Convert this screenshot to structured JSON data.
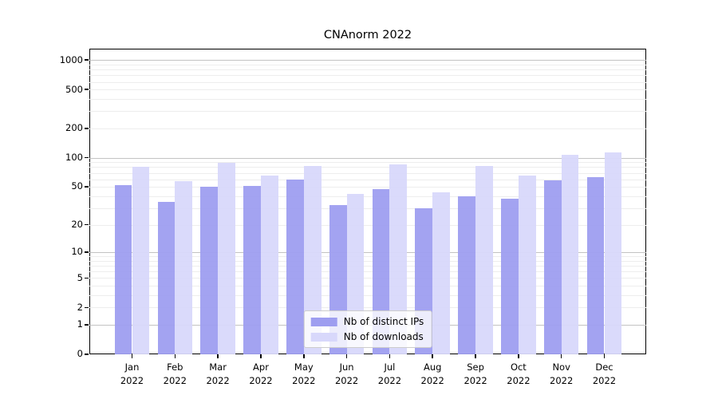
{
  "figure": {
    "title": "CNAnorm 2022"
  },
  "chart_data": {
    "type": "bar",
    "title": "CNAnorm 2022",
    "categories": [
      "Jan 2022",
      "Feb 2022",
      "Mar 2022",
      "Apr 2022",
      "May 2022",
      "Jun 2022",
      "Jul 2022",
      "Aug 2022",
      "Sep 2022",
      "Oct 2022",
      "Nov 2022",
      "Dec 2022"
    ],
    "series": [
      {
        "name": "Nb of distinct IPs",
        "color": "#9e9ef0",
        "values": [
          52,
          35,
          50,
          51,
          60,
          32,
          47,
          30,
          40,
          38,
          58,
          63
        ]
      },
      {
        "name": "Nb of downloads",
        "color": "#d8d8fb",
        "values": [
          80,
          57,
          88,
          66,
          83,
          42,
          86,
          44,
          82,
          66,
          108,
          114
        ]
      }
    ],
    "xlabel": "",
    "ylabel": "",
    "y_scale": "log10(1+x)",
    "y_tick_labels": [
      0,
      1,
      2,
      5,
      10,
      20,
      50,
      100,
      200,
      500,
      1000
    ],
    "ylim": [
      0,
      1300
    ],
    "grid": true,
    "legend_position": "bottom-center",
    "axis_color": "#000000",
    "major_grid_color": "#c3c3c3",
    "minor_grid_color": "#ededed"
  }
}
